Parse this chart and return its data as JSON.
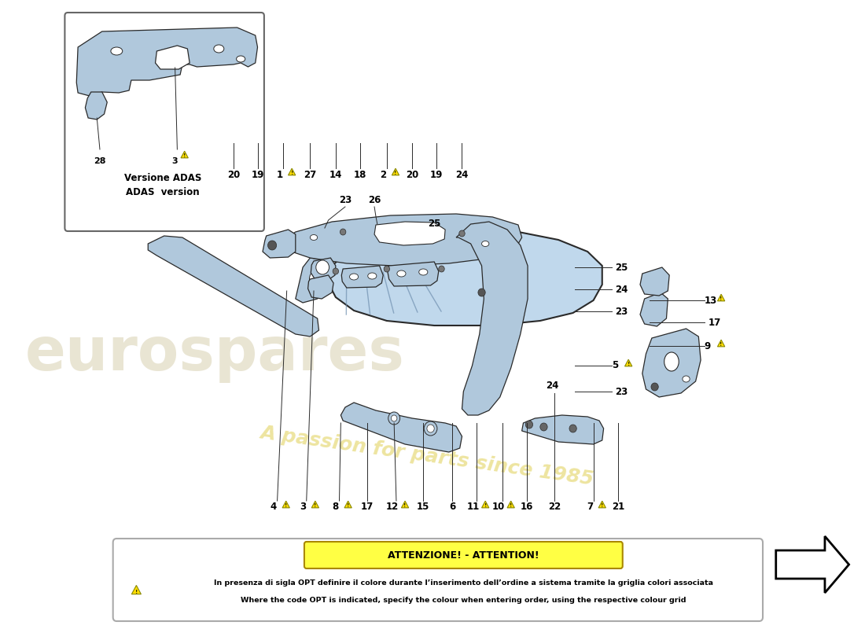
{
  "bg_color": "#ffffff",
  "fig_width": 11.0,
  "fig_height": 8.0,
  "attention_title": "ATTENZIONE! - ATTENTION!",
  "attention_line1": "In presenza di sigla OPT definire il colore durante l’inserimento dell’ordine a sistema tramite la griglia colori associata",
  "attention_line2": "Where the code OPT is indicated, specify the colour when entering order, using the respective colour grid",
  "adas_label1": "Versione ADAS",
  "adas_label2": "ADAS  version",
  "part_color": "#b0c8dc",
  "part_outline": "#2a2a2a",
  "attention_bg": "#ffff44",
  "watermark_text": "eurospares",
  "watermark_color": "#d8d0b0",
  "passion_text": "A passion for parts since 1985",
  "passion_color": "#e8dc80"
}
